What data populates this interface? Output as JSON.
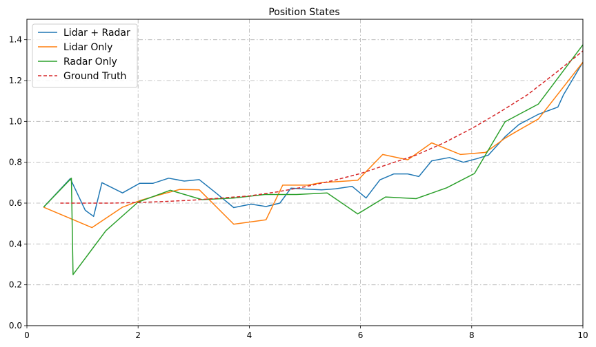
{
  "chart_data": {
    "type": "line",
    "title": "Position States",
    "xlabel": "",
    "ylabel": "",
    "xlim": [
      0,
      10
    ],
    "ylim": [
      0,
      1.5
    ],
    "xticks": [
      0,
      2,
      4,
      6,
      8,
      10
    ],
    "yticks": [
      0.0,
      0.2,
      0.4,
      0.6,
      0.8,
      1.0,
      1.2,
      1.4
    ],
    "xtick_labels": [
      "0",
      "2",
      "4",
      "6",
      "8",
      "10"
    ],
    "ytick_labels": [
      "0.0",
      "0.2",
      "0.4",
      "0.6",
      "0.8",
      "1.0",
      "1.2",
      "1.4"
    ],
    "grid": true,
    "legend_position": "top-left",
    "series": [
      {
        "name": "Lidar + Radar",
        "color": "#1f77b4",
        "style": "solid",
        "points": [
          [
            0.3,
            0.58
          ],
          [
            0.78,
            0.72
          ],
          [
            1.05,
            0.565
          ],
          [
            1.2,
            0.535
          ],
          [
            1.35,
            0.7
          ],
          [
            1.72,
            0.65
          ],
          [
            2.03,
            0.697
          ],
          [
            2.27,
            0.697
          ],
          [
            2.55,
            0.722
          ],
          [
            2.83,
            0.708
          ],
          [
            3.1,
            0.715
          ],
          [
            3.4,
            0.65
          ],
          [
            3.72,
            0.578
          ],
          [
            4.03,
            0.595
          ],
          [
            4.3,
            0.583
          ],
          [
            4.55,
            0.6
          ],
          [
            4.75,
            0.673
          ],
          [
            5.05,
            0.668
          ],
          [
            5.3,
            0.665
          ],
          [
            5.55,
            0.67
          ],
          [
            5.85,
            0.682
          ],
          [
            6.1,
            0.625
          ],
          [
            6.35,
            0.714
          ],
          [
            6.6,
            0.743
          ],
          [
            6.85,
            0.743
          ],
          [
            7.05,
            0.73
          ],
          [
            7.28,
            0.807
          ],
          [
            7.6,
            0.823
          ],
          [
            7.85,
            0.8
          ],
          [
            8.1,
            0.818
          ],
          [
            8.3,
            0.835
          ],
          [
            8.6,
            0.925
          ],
          [
            8.85,
            0.985
          ],
          [
            9.2,
            1.035
          ],
          [
            9.55,
            1.07
          ],
          [
            9.65,
            1.13
          ],
          [
            10.0,
            1.29
          ]
        ]
      },
      {
        "name": "Lidar Only",
        "color": "#ff7f0e",
        "style": "solid",
        "points": [
          [
            0.3,
            0.58
          ],
          [
            1.17,
            0.48
          ],
          [
            1.72,
            0.58
          ],
          [
            2.03,
            0.612
          ],
          [
            2.38,
            0.64
          ],
          [
            2.75,
            0.667
          ],
          [
            3.1,
            0.665
          ],
          [
            3.72,
            0.497
          ],
          [
            4.3,
            0.518
          ],
          [
            4.6,
            0.688
          ],
          [
            5.05,
            0.688
          ],
          [
            5.3,
            0.7
          ],
          [
            5.95,
            0.712
          ],
          [
            6.4,
            0.838
          ],
          [
            6.85,
            0.812
          ],
          [
            7.28,
            0.895
          ],
          [
            7.8,
            0.838
          ],
          [
            8.25,
            0.848
          ],
          [
            8.6,
            0.918
          ],
          [
            8.8,
            0.95
          ],
          [
            9.2,
            1.012
          ],
          [
            10.0,
            1.29
          ]
        ]
      },
      {
        "name": "Radar Only",
        "color": "#2ca02c",
        "style": "solid",
        "points": [
          [
            0.3,
            0.58
          ],
          [
            0.8,
            0.722
          ],
          [
            0.83,
            0.25
          ],
          [
            1.42,
            0.465
          ],
          [
            2.0,
            0.605
          ],
          [
            2.58,
            0.663
          ],
          [
            3.15,
            0.617
          ],
          [
            3.72,
            0.625
          ],
          [
            4.28,
            0.642
          ],
          [
            4.85,
            0.642
          ],
          [
            5.4,
            0.65
          ],
          [
            5.95,
            0.547
          ],
          [
            6.45,
            0.63
          ],
          [
            7.0,
            0.622
          ],
          [
            7.55,
            0.675
          ],
          [
            8.05,
            0.745
          ],
          [
            8.6,
            0.998
          ],
          [
            9.2,
            1.085
          ],
          [
            10.0,
            1.375
          ]
        ]
      },
      {
        "name": "Ground Truth",
        "color": "#d62728",
        "style": "dashed",
        "points": [
          [
            0.6,
            0.6
          ],
          [
            1.0,
            0.6
          ],
          [
            1.5,
            0.6
          ],
          [
            2.0,
            0.603
          ],
          [
            2.5,
            0.608
          ],
          [
            3.0,
            0.615
          ],
          [
            3.5,
            0.625
          ],
          [
            4.0,
            0.635
          ],
          [
            4.5,
            0.655
          ],
          [
            5.0,
            0.68
          ],
          [
            5.5,
            0.71
          ],
          [
            6.0,
            0.745
          ],
          [
            6.5,
            0.79
          ],
          [
            7.0,
            0.835
          ],
          [
            7.5,
            0.895
          ],
          [
            8.0,
            0.965
          ],
          [
            8.5,
            1.045
          ],
          [
            9.0,
            1.13
          ],
          [
            9.5,
            1.235
          ],
          [
            10.0,
            1.345
          ]
        ]
      }
    ]
  }
}
